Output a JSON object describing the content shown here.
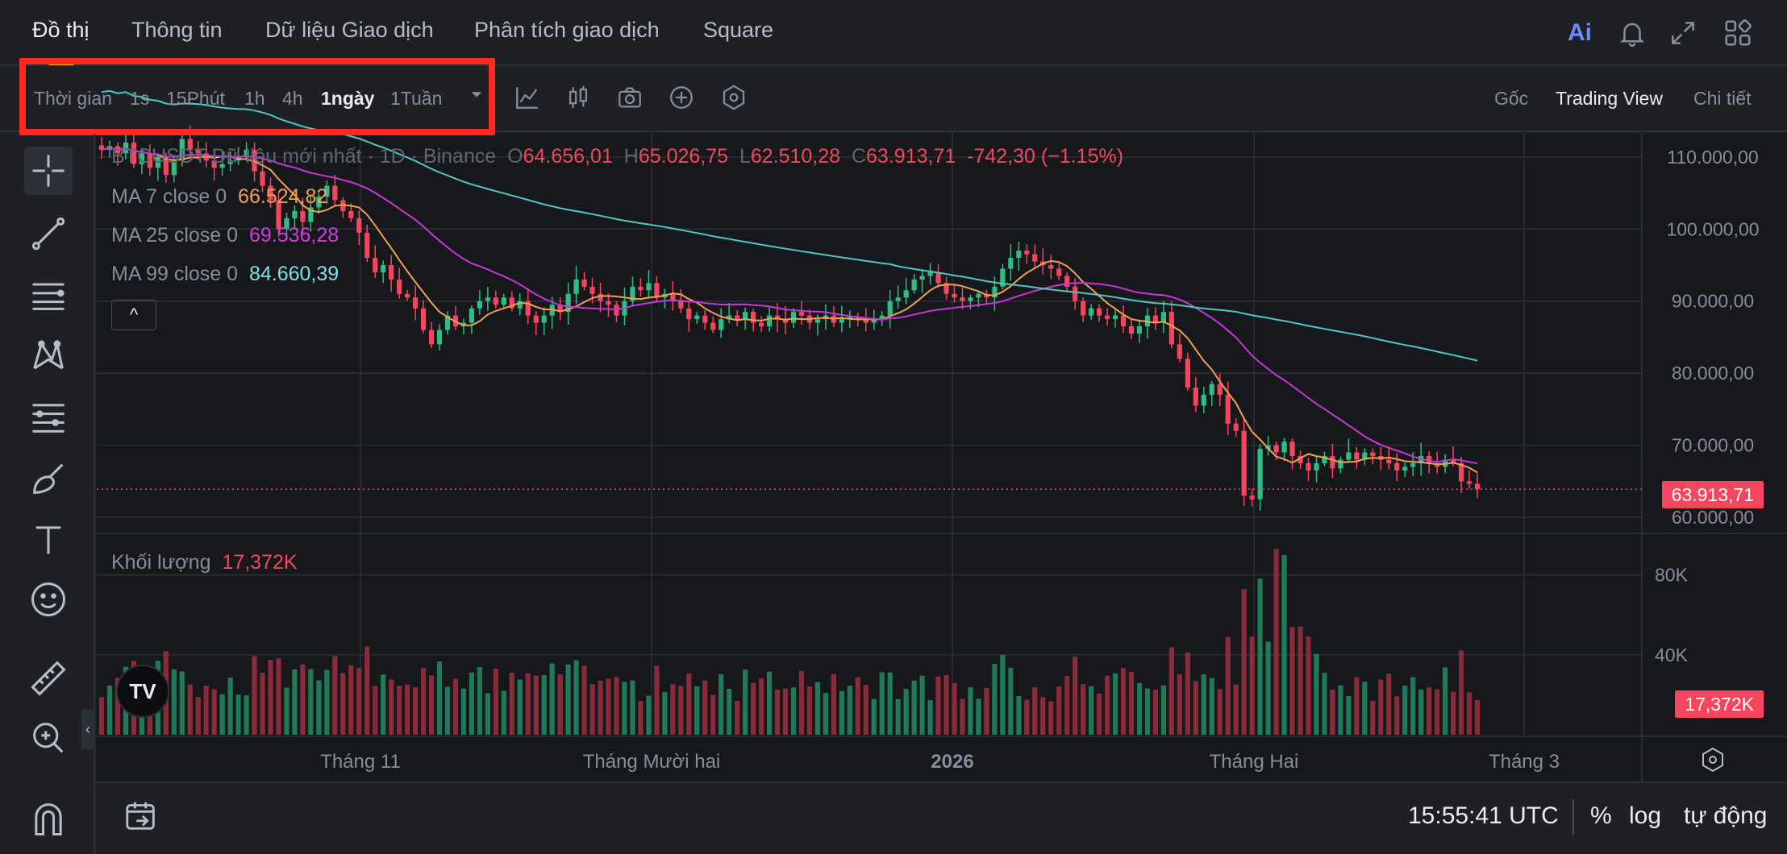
{
  "tabs": {
    "items": [
      {
        "label": "Đồ thị",
        "active": true
      },
      {
        "label": "Thông tin"
      },
      {
        "label": "Dữ liệu Giao dịch"
      },
      {
        "label": "Phân tích giao dịch"
      },
      {
        "label": "Square"
      }
    ],
    "icons": [
      "ai-icon",
      "bell-icon",
      "expand-icon",
      "layout-grid-icon"
    ],
    "ai_label": "Ai"
  },
  "toolbar": {
    "timeframe_label": "Thời gian",
    "timeframes": [
      "1s",
      "15Phút",
      "1h",
      "4h",
      "1ngày",
      "1Tuần"
    ],
    "active_timeframe": "1ngày",
    "icons": [
      "dropdown-icon",
      "indicators-icon",
      "candle-type-icon",
      "screenshot-icon",
      "add-icon",
      "settings-hex-icon"
    ],
    "views": [
      "Gốc",
      "Trading View",
      "Chi tiết"
    ],
    "active_view": "Trading View"
  },
  "legend": {
    "symbol": "BTCUSDT Dữ liệu mới nhất · 1D · Binance",
    "o_label": "O",
    "o": "64.656,01",
    "h_label": "H",
    "h": "65.026,75",
    "l_label": "L",
    "l": "62.510,28",
    "c_label": "C",
    "c": "63.913,71",
    "change": "-742,30 (−1.15%)",
    "ma7_label": "MA 7 close 0",
    "ma7": "66.524,82",
    "ma25_label": "MA 25 close 0",
    "ma25": "69.536,28",
    "ma99_label": "MA 99 close 0",
    "ma99": "84.660,39",
    "collapse": "^",
    "volume_label": "Khối lượng",
    "volume": "17,372K"
  },
  "chart_data": {
    "type": "candlestick",
    "symbol": "BTCUSDT",
    "interval": "1D",
    "price_axis": {
      "ticks": [
        "110.000,00",
        "100.000,00",
        "90.000,00",
        "80.000,00",
        "70.000,00",
        "60.000,00"
      ],
      "tick_values": [
        110000,
        100000,
        90000,
        80000,
        70000,
        60000
      ],
      "range": [
        58000,
        113000
      ]
    },
    "volume_axis": {
      "ticks": [
        "80K",
        "40K"
      ],
      "tick_values": [
        80000,
        40000
      ],
      "range": [
        0,
        100000
      ]
    },
    "x_axis_labels": [
      "Tháng 11",
      "Tháng Mười hai",
      "2026",
      "Tháng Hai",
      "Tháng 3"
    ],
    "last_price": 63913.71,
    "last_price_label": "63.913,71",
    "last_volume": 17372,
    "last_volume_label": "17,372K",
    "close_series": [
      111000,
      111500,
      110500,
      112000,
      109000,
      110500,
      108500,
      110000,
      107500,
      109500,
      112500,
      111000,
      110500,
      109500,
      108500,
      109000,
      109500,
      110000,
      111000,
      108000,
      106000,
      104000,
      100000,
      101500,
      102500,
      101000,
      103000,
      104500,
      106000,
      104000,
      102500,
      101500,
      99500,
      96000,
      94000,
      95000,
      93000,
      91000,
      90500,
      89000,
      86000,
      84000,
      86000,
      88000,
      86500,
      87000,
      89000,
      90000,
      90500,
      89500,
      90500,
      89000,
      90000,
      88000,
      87000,
      88000,
      89500,
      88500,
      91000,
      93000,
      92000,
      91000,
      90000,
      89500,
      88000,
      90000,
      92000,
      91500,
      92500,
      90500,
      91000,
      90000,
      89000,
      87500,
      88000,
      87000,
      86000,
      87500,
      88000,
      87500,
      88500,
      87000,
      86500,
      88000,
      87500,
      87000,
      88500,
      88000,
      87000,
      87500,
      88000,
      87000,
      87500,
      87800,
      87500,
      87000,
      87500,
      88000,
      90000,
      90500,
      91500,
      93000,
      93500,
      94000,
      92500,
      91000,
      90500,
      90000,
      90500,
      91000,
      90500,
      92000,
      94500,
      96000,
      97000,
      96500,
      95500,
      95000,
      94500,
      93500,
      92000,
      90000,
      88000,
      89000,
      88000,
      87500,
      88000,
      86500,
      85500,
      86500,
      88000,
      87000,
      88500,
      84000,
      82000,
      78000,
      75500,
      77000,
      78500,
      77000,
      73000,
      72000,
      63000,
      62500,
      69500,
      70000,
      69000,
      70500,
      68500,
      67500,
      66500,
      67500,
      68500,
      66800,
      68000,
      69000,
      68000,
      69000,
      68500,
      68000,
      67500,
      66500,
      67000,
      67500,
      68500,
      67500,
      67000,
      68000,
      67500,
      65000,
      64656,
      63914
    ],
    "ma_series": [
      {
        "name": "MA 7 close 0",
        "color": "#f0a050",
        "last": 66524.82
      },
      {
        "name": "MA 25 close 0",
        "color": "#c935d9",
        "last": 69536.28
      },
      {
        "name": "MA 99 close 0",
        "color": "#4fc7c2",
        "last": 84660.39
      }
    ]
  },
  "bottom": {
    "time": "15:55:41 UTC",
    "percent": "%",
    "log": "log",
    "auto": "tự động"
  },
  "colors": {
    "up": "#2ebd85",
    "down": "#f6465d",
    "accent": "#f0b90b",
    "highlight": "#ff2a1f"
  }
}
